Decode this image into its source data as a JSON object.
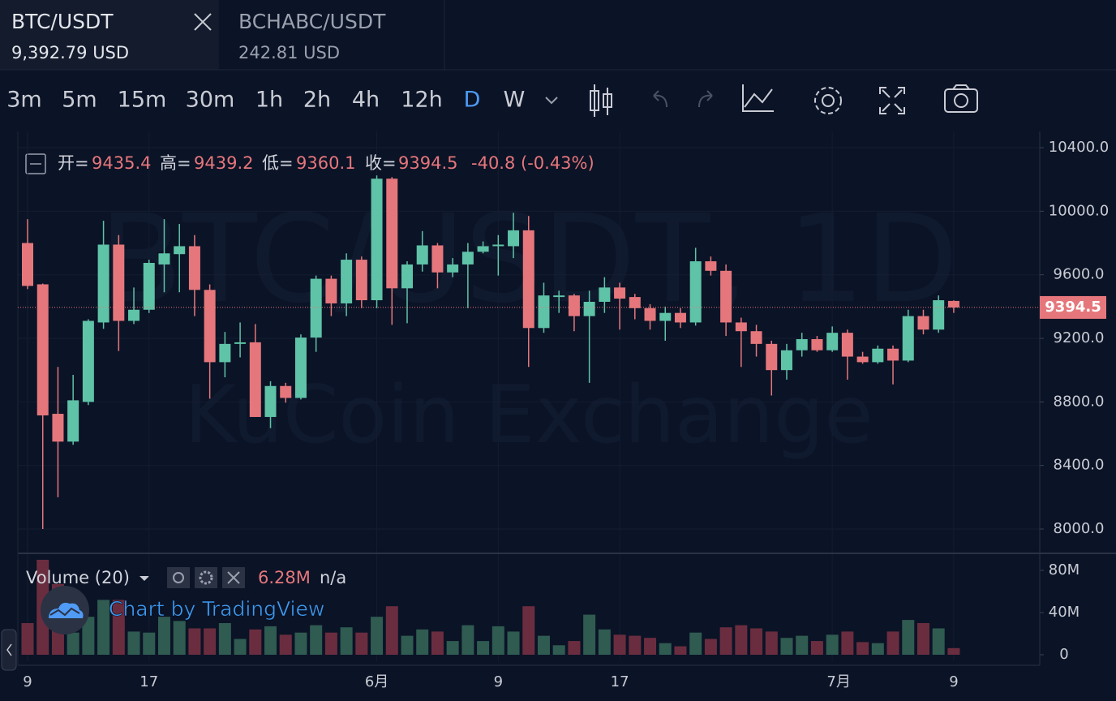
{
  "tabs": [
    {
      "symbol": "BTC/USDT",
      "price": "9,392.79 USD"
    },
    {
      "symbol": "BCHABC/USDT",
      "price": "242.81 USD"
    }
  ],
  "intervals": [
    "3m",
    "5m",
    "15m",
    "30m",
    "1h",
    "2h",
    "4h",
    "12h",
    "D",
    "W"
  ],
  "active_interval": "D",
  "chart_data": {
    "type": "candlestick",
    "watermark": "BTC/USDT, 1D",
    "watermark_sub": "KuCoin Exchange",
    "attribution": "Chart by TradingView",
    "legend": {
      "open_label": "开=",
      "high_label": "高=",
      "low_label": "低=",
      "close_label": "收=",
      "change": "-40.8 (-0.43%)"
    },
    "categories": [
      "9",
      null,
      null,
      null,
      null,
      null,
      null,
      null,
      "17",
      null,
      null,
      null,
      null,
      null,
      null,
      null,
      null,
      null,
      null,
      null,
      null,
      null,
      null,
      "6月",
      null,
      null,
      null,
      null,
      null,
      null,
      null,
      "9",
      null,
      null,
      null,
      null,
      null,
      null,
      null,
      "17",
      null,
      null,
      null,
      null,
      null,
      null,
      null,
      null,
      null,
      null,
      null,
      null,
      null,
      "7月",
      null,
      null,
      null,
      null,
      null,
      null,
      null,
      "9"
    ],
    "open": [
      9800,
      9540,
      8725,
      8550,
      8800,
      9300,
      9790,
      9310,
      9380,
      9665,
      9730,
      9780,
      9505,
      9050,
      9165,
      9175,
      8705,
      8900,
      8825,
      9205,
      9575,
      9420,
      9695,
      9440,
      10205,
      9515,
      9665,
      9785,
      9615,
      9665,
      9745,
      9780,
      9780,
      9880,
      9265,
      9460,
      9470,
      9340,
      9430,
      9520,
      9460,
      9390,
      9310,
      9360,
      9300,
      9685,
      9625,
      9300,
      9245,
      9165,
      9000,
      9125,
      9195,
      9125,
      9235,
      9085,
      9050,
      9135,
      9060,
      9340,
      9255,
      9435.4
    ],
    "high": [
      9950,
      9545,
      9020,
      8970,
      9320,
      9940,
      9850,
      9520,
      9695,
      9950,
      9920,
      9850,
      9540,
      9240,
      9300,
      9290,
      8930,
      8920,
      9225,
      9595,
      9595,
      9735,
      9715,
      10225,
      10215,
      9685,
      9875,
      9800,
      9705,
      9800,
      9810,
      9850,
      9990,
      9970,
      9550,
      9500,
      9480,
      9500,
      9585,
      9550,
      9480,
      9415,
      9400,
      9390,
      9770,
      9715,
      9665,
      9330,
      9285,
      9185,
      9165,
      9235,
      9215,
      9275,
      9255,
      9115,
      9155,
      9155,
      9380,
      9380,
      9470,
      9439.2
    ],
    "low": [
      9510,
      8000,
      8200,
      8530,
      8780,
      9260,
      9120,
      9290,
      9360,
      9490,
      9490,
      9340,
      8820,
      8955,
      9080,
      8705,
      8635,
      8795,
      8815,
      9115,
      9340,
      9340,
      9390,
      9390,
      9285,
      9295,
      9620,
      9515,
      9585,
      9390,
      9735,
      9595,
      9705,
      9020,
      9235,
      9360,
      9245,
      8920,
      9360,
      9255,
      9320,
      9255,
      9185,
      9265,
      9280,
      9595,
      9215,
      9020,
      9085,
      8840,
      8940,
      9085,
      9115,
      9115,
      8940,
      9040,
      9040,
      8910,
      9050,
      9225,
      9235,
      9360.1
    ],
    "close": [
      9530,
      8715,
      8550,
      8810,
      9310,
      9790,
      9310,
      9380,
      9675,
      9735,
      9780,
      9505,
      9050,
      9165,
      9175,
      8705,
      8900,
      8825,
      9205,
      9575,
      9420,
      9695,
      9440,
      10205,
      9515,
      9665,
      9785,
      9615,
      9665,
      9745,
      9780,
      9790,
      9880,
      9265,
      9470,
      9470,
      9340,
      9430,
      9520,
      9450,
      9390,
      9310,
      9360,
      9300,
      9685,
      9625,
      9300,
      9245,
      9165,
      9000,
      9125,
      9195,
      9125,
      9235,
      9085,
      9050,
      9135,
      9060,
      9340,
      9255,
      9440,
      9394.5
    ],
    "up_color": "#5fc3a7",
    "down_color": "#e5777c",
    "ylim": [
      7857,
      10487
    ],
    "yticks": [
      {
        "value": 8000,
        "label": "8000.0"
      },
      {
        "value": 8400,
        "label": "8400.0"
      },
      {
        "value": 8800,
        "label": "8800.0"
      },
      {
        "value": 9200,
        "label": "9200.0"
      },
      {
        "value": 9600,
        "label": "9600.0"
      },
      {
        "value": 10000,
        "label": "10000.0"
      },
      {
        "value": 10400,
        "label": "10400.0"
      }
    ],
    "grid": true,
    "volume": {
      "name": "Volume (20)",
      "axis": "y2",
      "up_color": "#2f5b51",
      "down_color": "#6a2d3f",
      "values": [
        30,
        90,
        67,
        21,
        36,
        52,
        52,
        22,
        21,
        36,
        32,
        25,
        25,
        30,
        15,
        24,
        27,
        19,
        21,
        28,
        21,
        26,
        21,
        36,
        46,
        18,
        24,
        22,
        13,
        28,
        13,
        27,
        22,
        46,
        18,
        9,
        13,
        38,
        24,
        19,
        18,
        16,
        11,
        8,
        21,
        15,
        26,
        28,
        25,
        22,
        16,
        18,
        13,
        19,
        22,
        12,
        11,
        22,
        33,
        30,
        25,
        6.28
      ],
      "legend_value": "6.28M",
      "legend_extra": "n/a"
    },
    "y2lim": [
      0,
      91.5
    ],
    "y2ticks": [
      0,
      {
        "value": 40,
        "label": "40M"
      },
      {
        "value": 80,
        "label": "80M"
      }
    ]
  }
}
